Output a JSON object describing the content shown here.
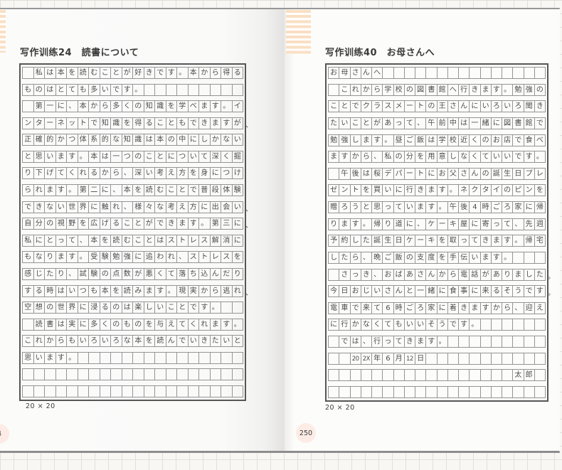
{
  "book": {
    "grid_size_label_left": "20 × 20",
    "grid_size_label_right": "20 × 20",
    "accent_stripe_color": "#fadfc3",
    "badge_color": "#fcece5"
  },
  "left_page": {
    "title": "写作训练24　読書について",
    "page_number_visible": "4",
    "rows": [
      " 私は本を読むことが好きです。本から得る",
      "ものはとても多いです。",
      " 第一に、本から多くの知識を学べます。イ",
      "ンターネットで知識を得ることもできますが、",
      "正確的かつ体系的な知識は本の中にしかない",
      "と思います。本は一つのことについて深く掘",
      "り下げてくれるから、深い考え方を身につけ",
      "られます。第二に、本を読むことで普段体験",
      "できない世界に触れ、様々な考え方に出会い、",
      "自分の視野を広げることができます。第三に、",
      "私にとって、本を読むことはストレス解消に",
      "もなります。受験勉強に追われ、ストレスを",
      "感じたり、試験の点数が悪くて落ち込んだり",
      "する時はいつも本を読みます。現実から逃れ、",
      "空想の世界に浸るのは楽しいことです。",
      " 読書は実に多くのものを与えてくれます。",
      "これからもいろいろな本を読んでいきたいと",
      "思います。",
      "",
      ""
    ]
  },
  "right_page": {
    "title": "写作训练40　お母さんへ",
    "page_number": "250",
    "rows": [
      "お母さんへ",
      " これから学校の図書館へ行きます。勉強の",
      "ことでクラスメートの王さんにいろいろ聞き",
      "たいことがあって、午前中は一緒に図書館で",
      "勉強します。昼ご飯は学校近くのお店で食べ",
      "ますから、私の分を用意しなくていいです。",
      " 午後は桜デパートにお父さんの誕生日プレ",
      "ゼントを買いに行きます。ネクタイのピンを",
      "贈ろうと思っています。午後4時ごろ家に帰",
      "ります。帰り道に、ケーキ屋に寄って、先週",
      "予約した誕生日ケーキを取ってきます。帰宅",
      "したら、晩ご飯の支度を手伝います。",
      " さっき、おばあさんから電話がありました。",
      "今日おじいさんと一緒に食事に来るそうです。",
      "電車で来て6時ごろ家に着きますから、迎え",
      "に行かなくてもいいそうです。",
      " では、行ってきます。",
      [
        "",
        "",
        "20",
        "2X",
        "年",
        "6",
        "月",
        "12",
        "日"
      ],
      [
        "",
        "",
        "",
        "",
        "",
        "",
        "",
        "",
        "",
        "",
        "",
        "",
        "",
        "",
        "",
        "",
        "",
        "太",
        "郎"
      ],
      ""
    ]
  }
}
